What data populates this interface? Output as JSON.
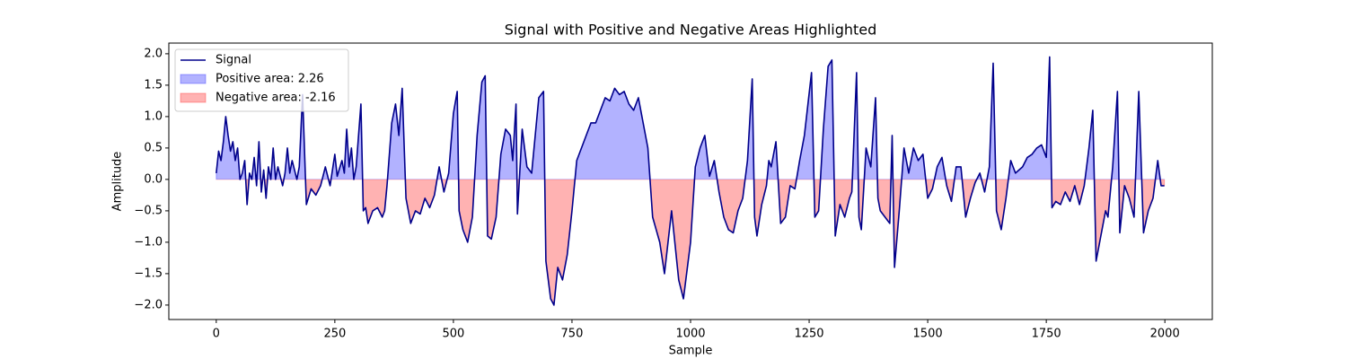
{
  "chart_data": {
    "type": "line",
    "title": "Signal with Positive and Negative Areas Highlighted",
    "xlabel": "Sample",
    "ylabel": "Amplitude",
    "xlim": [
      -100,
      2100
    ],
    "ylim": [
      -2.23,
      2.17
    ],
    "xticks": [
      0,
      250,
      500,
      750,
      1000,
      1250,
      1500,
      1750,
      2000
    ],
    "yticks": [
      {
        "value": -2,
        "label": "−2.0"
      },
      {
        "value": -1.5,
        "label": "−1.5"
      },
      {
        "value": -1,
        "label": "−1.0"
      },
      {
        "value": -0.5,
        "label": "−0.5"
      },
      {
        "value": 0,
        "label": "0.0"
      },
      {
        "value": 0.5,
        "label": "0.5"
      },
      {
        "value": 1,
        "label": "1.0"
      },
      {
        "value": 1.5,
        "label": "1.5"
      },
      {
        "value": 2,
        "label": "2.0"
      }
    ],
    "legend": "upper left",
    "series": [
      {
        "name": "Signal",
        "color": "#00008b",
        "x": [
          0,
          5,
          10,
          15,
          20,
          25,
          30,
          35,
          40,
          45,
          50,
          55,
          60,
          65,
          70,
          75,
          80,
          85,
          90,
          95,
          100,
          105,
          110,
          115,
          120,
          125,
          130,
          140,
          145,
          150,
          155,
          160,
          170,
          175,
          182,
          190,
          200,
          210,
          220,
          230,
          240,
          250,
          255,
          265,
          270,
          275,
          280,
          285,
          290,
          295,
          305,
          310,
          315,
          320,
          330,
          340,
          350,
          355,
          360,
          370,
          378,
          385,
          392,
          400,
          410,
          420,
          430,
          440,
          450,
          460,
          470,
          480,
          490,
          500,
          508,
          512,
          520,
          530,
          540,
          550,
          560,
          567,
          572,
          580,
          590,
          600,
          610,
          620,
          625,
          632,
          635,
          645,
          655,
          665,
          680,
          690,
          695,
          705,
          712,
          720,
          730,
          740,
          750,
          760,
          775,
          790,
          800,
          810,
          820,
          830,
          840,
          850,
          860,
          870,
          880,
          890,
          900,
          910,
          920,
          935,
          945,
          960,
          975,
          985,
          1000,
          1010,
          1020,
          1030,
          1040,
          1050,
          1060,
          1070,
          1080,
          1090,
          1100,
          1110,
          1120,
          1130,
          1135,
          1140,
          1150,
          1160,
          1165,
          1170,
          1180,
          1190,
          1200,
          1210,
          1220,
          1230,
          1240,
          1255,
          1262,
          1270,
          1280,
          1290,
          1298,
          1305,
          1315,
          1325,
          1335,
          1340,
          1350,
          1355,
          1360,
          1370,
          1380,
          1390,
          1395,
          1400,
          1410,
          1420,
          1425,
          1430,
          1440,
          1450,
          1460,
          1470,
          1480,
          1490,
          1500,
          1510,
          1520,
          1530,
          1540,
          1550,
          1560,
          1570,
          1580,
          1590,
          1600,
          1610,
          1620,
          1630,
          1638,
          1645,
          1655,
          1665,
          1675,
          1685,
          1700,
          1710,
          1720,
          1730,
          1740,
          1750,
          1757,
          1762,
          1770,
          1780,
          1790,
          1800,
          1810,
          1820,
          1830,
          1840,
          1848,
          1855,
          1865,
          1875,
          1880,
          1890,
          1900,
          1905,
          1915,
          1925,
          1935,
          1945,
          1955,
          1965,
          1975,
          1985,
          1992,
          1999
        ],
        "values": [
          0.1,
          0.45,
          0.3,
          0.6,
          1.0,
          0.7,
          0.45,
          0.6,
          0.3,
          0.5,
          0.0,
          0.1,
          0.3,
          -0.4,
          0.1,
          0.0,
          0.35,
          -0.1,
          0.6,
          -0.2,
          0.15,
          -0.3,
          0.2,
          0.0,
          0.5,
          0.0,
          0.2,
          -0.1,
          0.1,
          0.5,
          0.1,
          0.3,
          0.0,
          0.2,
          1.35,
          -0.4,
          -0.15,
          -0.25,
          -0.1,
          0.2,
          -0.1,
          0.4,
          0.05,
          0.3,
          0.1,
          0.8,
          0.2,
          0.5,
          0.0,
          0.2,
          1.2,
          -0.5,
          -0.45,
          -0.7,
          -0.5,
          -0.45,
          -0.6,
          -0.5,
          -0.1,
          0.9,
          1.2,
          0.7,
          1.45,
          -0.3,
          -0.7,
          -0.5,
          -0.55,
          -0.3,
          -0.45,
          -0.25,
          0.2,
          -0.2,
          0.1,
          1.05,
          1.4,
          -0.5,
          -0.8,
          -1.0,
          -0.6,
          0.7,
          1.55,
          1.65,
          -0.9,
          -0.95,
          -0.6,
          0.4,
          0.8,
          0.7,
          0.3,
          1.2,
          -0.55,
          0.8,
          0.2,
          0.1,
          1.3,
          1.4,
          -1.3,
          -1.9,
          -2.0,
          -1.4,
          -1.6,
          -1.2,
          -0.5,
          0.3,
          0.6,
          0.9,
          0.9,
          1.1,
          1.3,
          1.25,
          1.45,
          1.35,
          1.4,
          1.2,
          1.1,
          1.3,
          0.9,
          0.5,
          -0.6,
          -1.0,
          -1.5,
          -0.5,
          -1.6,
          -1.9,
          -1.0,
          0.2,
          0.5,
          0.7,
          0.05,
          0.3,
          -0.2,
          -0.6,
          -0.8,
          -0.85,
          -0.5,
          -0.3,
          0.3,
          1.6,
          -0.6,
          -0.9,
          -0.4,
          -0.1,
          0.3,
          0.2,
          0.6,
          -0.7,
          -0.6,
          -0.1,
          -0.15,
          0.3,
          0.7,
          1.7,
          -0.6,
          -0.5,
          0.8,
          1.8,
          1.9,
          -0.9,
          -0.4,
          -0.6,
          -0.3,
          -0.2,
          1.7,
          -0.6,
          -0.8,
          0.5,
          0.2,
          1.3,
          -0.3,
          -0.5,
          -0.6,
          -0.7,
          0.7,
          -1.4,
          -0.5,
          0.5,
          0.1,
          0.5,
          0.3,
          0.4,
          -0.3,
          -0.15,
          0.2,
          0.35,
          -0.1,
          -0.35,
          0.2,
          0.2,
          -0.6,
          -0.3,
          -0.05,
          0.1,
          -0.2,
          0.2,
          1.85,
          -0.5,
          -0.8,
          -0.3,
          0.3,
          0.1,
          0.2,
          0.35,
          0.4,
          0.5,
          0.55,
          0.35,
          1.95,
          -0.45,
          -0.35,
          -0.4,
          -0.2,
          -0.35,
          -0.1,
          -0.4,
          -0.1,
          0.5,
          1.1,
          -1.3,
          -0.9,
          -0.5,
          -0.6,
          0.2,
          1.4,
          -0.85,
          -0.1,
          -0.3,
          -0.6,
          1.4,
          -0.85,
          -0.5,
          -0.3,
          0.3,
          -0.1,
          -0.1
        ]
      }
    ],
    "fills": [
      {
        "label": "Positive area: 2.26",
        "color": "blue",
        "alpha": 0.3,
        "side": "above"
      },
      {
        "label": "Negative area: -2.16",
        "color": "red",
        "alpha": 0.3,
        "side": "below"
      }
    ]
  }
}
